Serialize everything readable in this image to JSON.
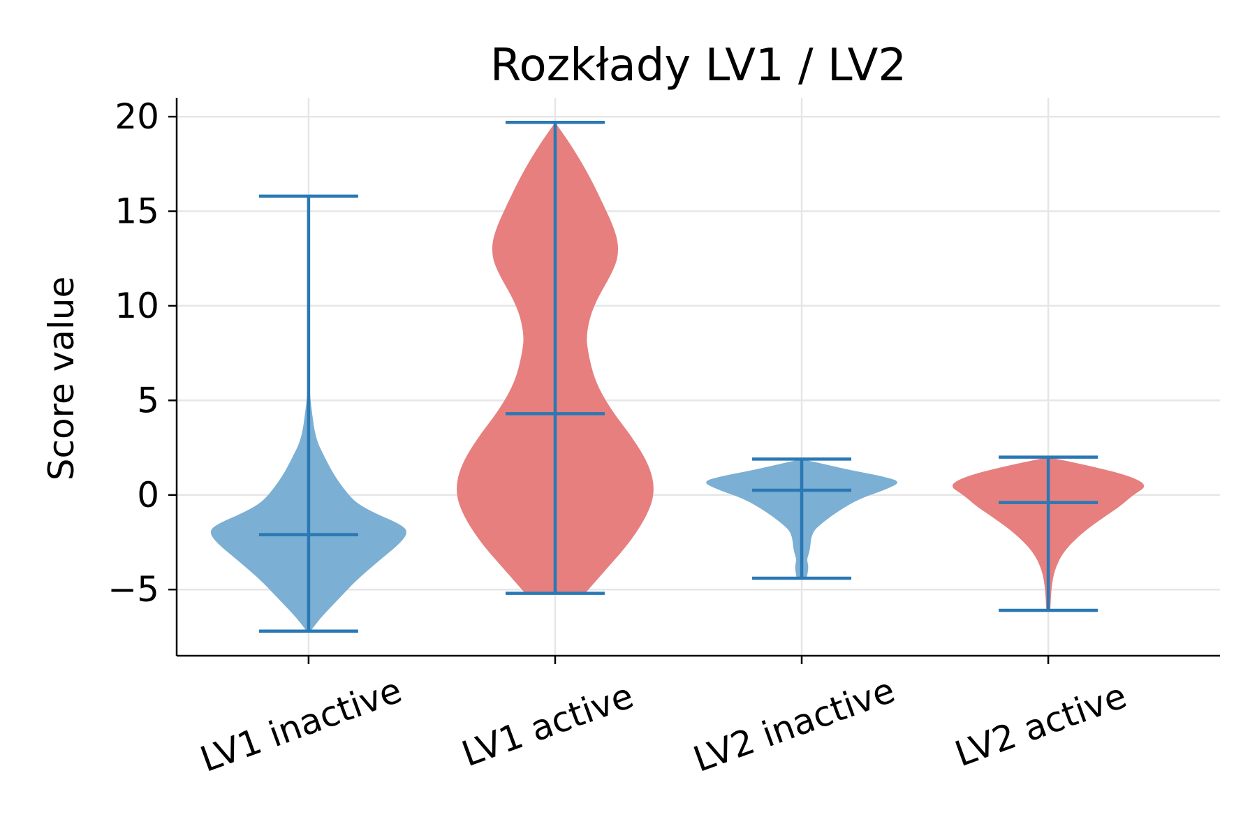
{
  "chart_data": {
    "type": "violin",
    "title": "Rozkłady LV1 / LV2",
    "xlabel": "",
    "ylabel": "Score value",
    "ylim": [
      -8.5,
      21
    ],
    "yticks": [
      20,
      15,
      10,
      5,
      0,
      -5
    ],
    "ytick_labels": [
      "20",
      "15",
      "10",
      "5",
      "0",
      "−5"
    ],
    "grid": true,
    "categories": [
      "LV1 inactive",
      "LV1 active",
      "LV2 inactive",
      "LV2 active"
    ],
    "colors": {
      "inactive": "#7bafd4",
      "active": "#e77f7f",
      "lines": "#2a78b4"
    },
    "series": [
      {
        "category": "LV1 inactive",
        "fill": "#7bafd4",
        "min": -7.2,
        "max": 15.8,
        "median": -2.1,
        "profile": [
          [
            -7.2,
            0.02
          ],
          [
            -6.5,
            0.12
          ],
          [
            -5.5,
            0.3
          ],
          [
            -4.5,
            0.48
          ],
          [
            -3.5,
            0.7
          ],
          [
            -2.5,
            0.93
          ],
          [
            -1.9,
            1.0
          ],
          [
            -1.5,
            0.9
          ],
          [
            -1.0,
            0.68
          ],
          [
            -0.5,
            0.5
          ],
          [
            0.0,
            0.4
          ],
          [
            1.0,
            0.26
          ],
          [
            2.0,
            0.16
          ],
          [
            3.0,
            0.07
          ],
          [
            4.5,
            0.03
          ],
          [
            5.5,
            0.01
          ],
          [
            8.0,
            0.003
          ],
          [
            15.8,
            0.0
          ]
        ]
      },
      {
        "category": "LV1 active",
        "fill": "#e77f7f",
        "min": -5.2,
        "max": 19.7,
        "median": 4.3,
        "profile": [
          [
            -5.2,
            0.3
          ],
          [
            -4.0,
            0.5
          ],
          [
            -2.5,
            0.75
          ],
          [
            -1.0,
            0.93
          ],
          [
            0.2,
            1.0
          ],
          [
            1.5,
            0.95
          ],
          [
            3.0,
            0.78
          ],
          [
            4.5,
            0.56
          ],
          [
            6.0,
            0.4
          ],
          [
            7.5,
            0.33
          ],
          [
            8.5,
            0.31
          ],
          [
            10.0,
            0.38
          ],
          [
            12.0,
            0.6
          ],
          [
            13.0,
            0.64
          ],
          [
            14.0,
            0.6
          ],
          [
            15.5,
            0.47
          ],
          [
            17.0,
            0.33
          ],
          [
            18.5,
            0.16
          ],
          [
            19.7,
            0.0
          ]
        ]
      },
      {
        "category": "LV2 inactive",
        "fill": "#7bafd4",
        "min": -4.4,
        "max": 1.9,
        "median": 0.25,
        "profile": [
          [
            -4.4,
            0.05
          ],
          [
            -3.8,
            0.07
          ],
          [
            -3.4,
            0.05
          ],
          [
            -3.0,
            0.08
          ],
          [
            -2.0,
            0.1
          ],
          [
            -1.5,
            0.2
          ],
          [
            -0.8,
            0.38
          ],
          [
            -0.2,
            0.58
          ],
          [
            0.3,
            0.85
          ],
          [
            0.7,
            1.0
          ],
          [
            1.0,
            0.8
          ],
          [
            1.3,
            0.5
          ],
          [
            1.6,
            0.25
          ],
          [
            1.9,
            0.0
          ]
        ]
      },
      {
        "category": "LV2 active",
        "fill": "#e77f7f",
        "min": -6.1,
        "max": 2.0,
        "median": -0.4,
        "profile": [
          [
            -6.1,
            0.02
          ],
          [
            -5.0,
            0.03
          ],
          [
            -4.0,
            0.06
          ],
          [
            -3.0,
            0.15
          ],
          [
            -2.0,
            0.34
          ],
          [
            -1.2,
            0.55
          ],
          [
            -0.6,
            0.72
          ],
          [
            0.0,
            0.85
          ],
          [
            0.5,
            1.0
          ],
          [
            1.0,
            0.82
          ],
          [
            1.5,
            0.45
          ],
          [
            2.0,
            0.0
          ]
        ]
      }
    ]
  }
}
